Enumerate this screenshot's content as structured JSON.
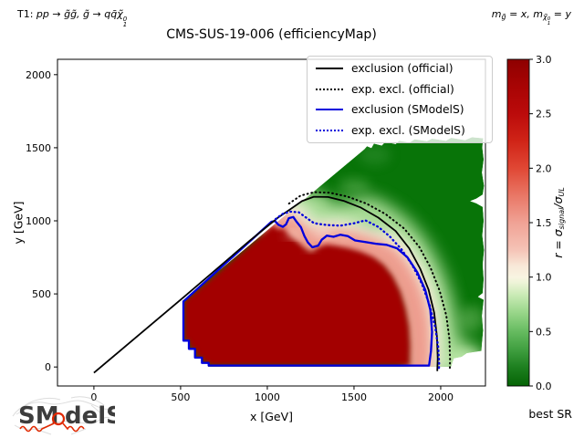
{
  "figure": {
    "title": "CMS-SUS-19-006 (efficiencyMap)",
    "annotation_left": {
      "p1": "T1: ",
      "math": "pp → g̃g̃,  g̃ → qq̄χ̃",
      "sup": "0",
      "sub": "1"
    },
    "annotation_right": {
      "p1": "m",
      "s1": "g̃",
      "p2": " = x,  m",
      "s2": "χ̃",
      "sup": "0",
      "sub": "1",
      "p3": " = y"
    },
    "watermark": {
      "part1": "SM",
      "part2": "delS"
    },
    "best_sr": "best SR"
  },
  "axes": {
    "xlabel": "x [GeV]",
    "ylabel": "y [GeV]",
    "xlim": [
      -210,
      2258
    ],
    "ylim": [
      -130,
      2105
    ],
    "xticks": [
      0,
      500,
      1000,
      1500,
      2000
    ],
    "xtick_labels": [
      "0",
      "500",
      "1000",
      "1500",
      "2000"
    ],
    "yticks": [
      0,
      500,
      1000,
      1500,
      2000
    ],
    "ytick_labels": [
      "0",
      "500",
      "1000",
      "1500",
      "2000"
    ]
  },
  "legend": {
    "items": [
      {
        "label": "exclusion (official)",
        "color": "#000000",
        "style": "solid"
      },
      {
        "label": "exp. excl. (official)",
        "color": "#000000",
        "style": "dotted"
      },
      {
        "label": "exclusion (SModelS)",
        "color": "#0000dd",
        "style": "solid"
      },
      {
        "label": "exp. excl. (SModelS)",
        "color": "#0000dd",
        "style": "dotted"
      }
    ]
  },
  "colorbar": {
    "label_parts": {
      "p1": "r = σ",
      "s1": "signal",
      "p2": "/σ",
      "s2": "UL"
    },
    "range": [
      0,
      3
    ],
    "ticks": [
      0.0,
      0.5,
      1.0,
      1.5,
      2.0,
      2.5,
      3.0
    ],
    "tick_labels": [
      "0.0",
      "0.5",
      "1.0",
      "1.5",
      "2.0",
      "2.5",
      "3.0"
    ],
    "stops": [
      [
        0.0,
        "#056405"
      ],
      [
        0.17,
        "#1d7f1f"
      ],
      [
        0.33,
        "#3f9e3f"
      ],
      [
        0.5,
        "#66bb60"
      ],
      [
        0.67,
        "#97d588"
      ],
      [
        0.83,
        "#c8eab4"
      ],
      [
        0.95,
        "#eef4d8"
      ],
      [
        1.0,
        "#f8f4e1"
      ],
      [
        1.1,
        "#f8e8d8"
      ],
      [
        1.25,
        "#f5c3b6"
      ],
      [
        1.5,
        "#f0a295"
      ],
      [
        1.75,
        "#e97766"
      ],
      [
        2.0,
        "#e04734"
      ],
      [
        2.25,
        "#d02417"
      ],
      [
        2.5,
        "#bb0b0b"
      ],
      [
        2.75,
        "#a80404"
      ],
      [
        3.0,
        "#8e0000"
      ]
    ]
  },
  "chart_data": {
    "type": "heatmap",
    "title": "CMS-SUS-19-006 (efficiencyMap)",
    "xlabel": "x [GeV]",
    "ylabel": "y [GeV]",
    "zlabel": "r = sigma_signal / sigma_UL",
    "zmin": 0,
    "zmax": 3,
    "description": "Efficiency-map r-value over the (m_gluino=x, m_neutralino=y) plane; r>1 (red) excluded, r<1 (green) allowed; overlaid official and SModelS exclusion contours at r=1.",
    "regions": {
      "base_color": "#087408",
      "footprint": [
        [
          512,
          452
        ],
        [
          512,
          175
        ],
        [
          545,
          175
        ],
        [
          545,
          120
        ],
        [
          580,
          120
        ],
        [
          580,
          60
        ],
        [
          620,
          60
        ],
        [
          620,
          25
        ],
        [
          658,
          25
        ],
        [
          658,
          2
        ],
        [
          2060,
          2
        ],
        [
          2066,
          28
        ],
        [
          2076,
          60
        ],
        [
          2120,
          70
        ],
        [
          2150,
          95
        ],
        [
          2235,
          110
        ],
        [
          2238,
          160
        ],
        [
          2245,
          250
        ],
        [
          2238,
          350
        ],
        [
          2248,
          460
        ],
        [
          2215,
          480
        ],
        [
          2242,
          505
        ],
        [
          2248,
          600
        ],
        [
          2242,
          700
        ],
        [
          2250,
          800
        ],
        [
          2240,
          900
        ],
        [
          2248,
          1000
        ],
        [
          2242,
          1095
        ],
        [
          2205,
          1120
        ],
        [
          2170,
          1135
        ],
        [
          2205,
          1152
        ],
        [
          2242,
          1180
        ],
        [
          2250,
          1240
        ],
        [
          2238,
          1330
        ],
        [
          2248,
          1420
        ],
        [
          2240,
          1500
        ],
        [
          2245,
          1565
        ],
        [
          2180,
          1572
        ],
        [
          2140,
          1552
        ],
        [
          2060,
          1568
        ],
        [
          2030,
          1548
        ],
        [
          1950,
          1562
        ],
        [
          1920,
          1545
        ],
        [
          1850,
          1558
        ],
        [
          1820,
          1535
        ],
        [
          1760,
          1548
        ],
        [
          1740,
          1525
        ],
        [
          1680,
          1540
        ],
        [
          1660,
          1515
        ],
        [
          1615,
          1528
        ],
        [
          1600,
          1498
        ],
        [
          1575,
          1510
        ],
        [
          1560,
          1490
        ]
      ],
      "bands": [
        {
          "name": "light-green-band",
          "color": "#b9e6a5",
          "width": 38,
          "blur": 9,
          "opacity": 0.9,
          "points": [
            [
              1070,
              1065
            ],
            [
              1140,
              1110
            ],
            [
              1220,
              1105
            ],
            [
              1300,
              1030
            ],
            [
              1390,
              1010
            ],
            [
              1490,
              1015
            ],
            [
              1580,
              1050
            ],
            [
              1660,
              1000
            ],
            [
              1740,
              930
            ],
            [
              1810,
              840
            ],
            [
              1870,
              730
            ],
            [
              1925,
              600
            ],
            [
              1965,
              460
            ],
            [
              1995,
              310
            ],
            [
              2012,
              170
            ],
            [
              2020,
              60
            ],
            [
              2060,
              20
            ],
            [
              2140,
              50
            ]
          ]
        },
        {
          "name": "white-band",
          "color": "#f8f3e2",
          "width": 34,
          "blur": 7,
          "opacity": 0.95,
          "points": [
            [
              1030,
              1000
            ],
            [
              1090,
              1012
            ],
            [
              1150,
              1020
            ],
            [
              1200,
              950
            ],
            [
              1252,
              880
            ],
            [
              1312,
              900
            ],
            [
              1382,
              906
            ],
            [
              1452,
              898
            ],
            [
              1532,
              868
            ],
            [
              1612,
              842
            ],
            [
              1692,
              822
            ],
            [
              1762,
              758
            ],
            [
              1826,
              638
            ],
            [
              1872,
              518
            ],
            [
              1902,
              378
            ],
            [
              1916,
              228
            ],
            [
              1920,
              88
            ],
            [
              1918,
              12
            ]
          ]
        },
        {
          "name": "pink-band",
          "color": "#ef9a8c",
          "width": 28,
          "blur": 6,
          "opacity": 0.95,
          "points": [
            [
              1055,
              962
            ],
            [
              1120,
              962
            ],
            [
              1180,
              900
            ],
            [
              1240,
              842
            ],
            [
              1310,
              862
            ],
            [
              1390,
              862
            ],
            [
              1470,
              850
            ],
            [
              1550,
              820
            ],
            [
              1630,
              788
            ],
            [
              1700,
              738
            ],
            [
              1760,
              648
            ],
            [
              1810,
              538
            ],
            [
              1845,
              418
            ],
            [
              1865,
              288
            ],
            [
              1872,
              148
            ],
            [
              1870,
              18
            ]
          ]
        }
      ],
      "red_core": {
        "color": "#a30505",
        "points": [
          [
            516,
            450
          ],
          [
            1035,
            975
          ],
          [
            1060,
            940
          ],
          [
            1092,
            952
          ],
          [
            1130,
            898
          ],
          [
            1172,
            858
          ],
          [
            1212,
            818
          ],
          [
            1252,
            788
          ],
          [
            1292,
            818
          ],
          [
            1342,
            838
          ],
          [
            1402,
            828
          ],
          [
            1472,
            812
          ],
          [
            1542,
            788
          ],
          [
            1612,
            752
          ],
          [
            1672,
            698
          ],
          [
            1722,
            622
          ],
          [
            1766,
            518
          ],
          [
            1796,
            402
          ],
          [
            1816,
            278
          ],
          [
            1823,
            148
          ],
          [
            1820,
            8
          ],
          [
            662,
            8
          ],
          [
            662,
            26
          ],
          [
            624,
            26
          ],
          [
            624,
            62
          ],
          [
            584,
            62
          ],
          [
            584,
            122
          ],
          [
            548,
            122
          ],
          [
            548,
            177
          ],
          [
            516,
            177
          ]
        ]
      },
      "patches": [
        {
          "layer": 0,
          "cx": 1300,
          "cy": 1120,
          "rx": 60,
          "ry": 40,
          "color": "#a6d893",
          "op": 0.5
        },
        {
          "layer": 0,
          "cx": 1500,
          "cy": 1240,
          "rx": 90,
          "ry": 45,
          "color": "#7cc46d",
          "op": 0.45
        },
        {
          "layer": 0,
          "cx": 2180,
          "cy": 330,
          "rx": 70,
          "ry": 90,
          "color": "#8fce7d",
          "op": 0.4
        },
        {
          "layer": 0,
          "cx": 2120,
          "cy": 55,
          "rx": 110,
          "ry": 45,
          "color": "#d8eec6",
          "op": 0.8
        },
        {
          "layer": 0,
          "cx": 1620,
          "cy": 1450,
          "rx": 90,
          "ry": 70,
          "color": "#3f9a3f",
          "op": 0.4
        },
        {
          "layer": 1,
          "cx": 1150,
          "cy": 905,
          "rx": 45,
          "ry": 22,
          "color": "#f6d9c9",
          "op": 0.75
        },
        {
          "layer": 1,
          "cx": 1320,
          "cy": 915,
          "rx": 55,
          "ry": 25,
          "color": "#fdf6ec",
          "op": 0.7
        },
        {
          "layer": 1,
          "cx": 1250,
          "cy": 800,
          "rx": 28,
          "ry": 14,
          "color": "#f3b9a9",
          "op": 0.6
        },
        {
          "layer": 1,
          "cx": 1440,
          "cy": 880,
          "rx": 40,
          "ry": 18,
          "color": "#f6cdbd",
          "op": 0.55
        }
      ]
    },
    "contours": [
      {
        "name": "exclusion-smodels",
        "legend": "exclusion (SModelS)",
        "color": "#0000dd",
        "width": 2.3,
        "dash": null,
        "closed": true,
        "points": [
          [
            516,
            448
          ],
          [
            516,
            180
          ],
          [
            548,
            180
          ],
          [
            548,
            124
          ],
          [
            583,
            124
          ],
          [
            583,
            64
          ],
          [
            623,
            64
          ],
          [
            623,
            28
          ],
          [
            662,
            28
          ],
          [
            662,
            10
          ],
          [
            1933,
            10
          ],
          [
            1944,
            110
          ],
          [
            1950,
            240
          ],
          [
            1940,
            390
          ],
          [
            1910,
            530
          ],
          [
            1865,
            648
          ],
          [
            1808,
            750
          ],
          [
            1748,
            812
          ],
          [
            1688,
            836
          ],
          [
            1626,
            843
          ],
          [
            1562,
            856
          ],
          [
            1506,
            866
          ],
          [
            1464,
            896
          ],
          [
            1422,
            905
          ],
          [
            1382,
            891
          ],
          [
            1344,
            899
          ],
          [
            1314,
            871
          ],
          [
            1294,
            831
          ],
          [
            1260,
            819
          ],
          [
            1234,
            852
          ],
          [
            1214,
            896
          ],
          [
            1194,
            956
          ],
          [
            1167,
            996
          ],
          [
            1150,
            1026
          ],
          [
            1124,
            1018
          ],
          [
            1108,
            976
          ],
          [
            1090,
            959
          ],
          [
            1064,
            973
          ],
          [
            1044,
            999
          ],
          [
            1024,
            994
          ]
        ]
      },
      {
        "name": "exclusion-official",
        "legend": "exclusion (official)",
        "color": "#000000",
        "width": 1.8,
        "dash": null,
        "closed": false,
        "points": [
          [
            0,
            -40
          ],
          [
            520,
            480
          ],
          [
            900,
            865
          ],
          [
            1060,
            1020
          ],
          [
            1140,
            1085
          ],
          [
            1200,
            1135
          ],
          [
            1268,
            1165
          ],
          [
            1350,
            1163
          ],
          [
            1440,
            1137
          ],
          [
            1540,
            1090
          ],
          [
            1640,
            1022
          ],
          [
            1740,
            930
          ],
          [
            1818,
            812
          ],
          [
            1882,
            672
          ],
          [
            1930,
            528
          ],
          [
            1962,
            372
          ],
          [
            1978,
            212
          ],
          [
            1983,
            58
          ],
          [
            1980,
            -28
          ]
        ]
      },
      {
        "name": "expected-exclusion-official",
        "legend": "exp. excl. (official)",
        "color": "#000000",
        "width": 2.0,
        "dash": "0.8 3.8",
        "closed": false,
        "points": [
          [
            1125,
            1118
          ],
          [
            1192,
            1172
          ],
          [
            1270,
            1196
          ],
          [
            1362,
            1192
          ],
          [
            1462,
            1166
          ],
          [
            1572,
            1118
          ],
          [
            1682,
            1046
          ],
          [
            1790,
            946
          ],
          [
            1876,
            822
          ],
          [
            1940,
            682
          ],
          [
            1994,
            522
          ],
          [
            2032,
            352
          ],
          [
            2050,
            192
          ],
          [
            2054,
            52
          ],
          [
            2052,
            -28
          ]
        ]
      },
      {
        "name": "expected-exclusion-smodels",
        "legend": "exp. excl. (SModelS)",
        "color": "#0000dd",
        "width": 2.3,
        "dash": "0.8 3.8",
        "closed": false,
        "points": [
          [
            1048,
            1012
          ],
          [
            1086,
            1046
          ],
          [
            1132,
            1063
          ],
          [
            1182,
            1058
          ],
          [
            1222,
            1024
          ],
          [
            1270,
            984
          ],
          [
            1342,
            971
          ],
          [
            1422,
            967
          ],
          [
            1502,
            984
          ],
          [
            1566,
            1003
          ],
          [
            1640,
            958
          ],
          [
            1706,
            893
          ],
          [
            1772,
            808
          ],
          [
            1836,
            698
          ],
          [
            1892,
            568
          ],
          [
            1936,
            423
          ],
          [
            1968,
            273
          ],
          [
            1986,
            133
          ],
          [
            1991,
            12
          ],
          [
            1989,
            -18
          ]
        ]
      }
    ]
  }
}
